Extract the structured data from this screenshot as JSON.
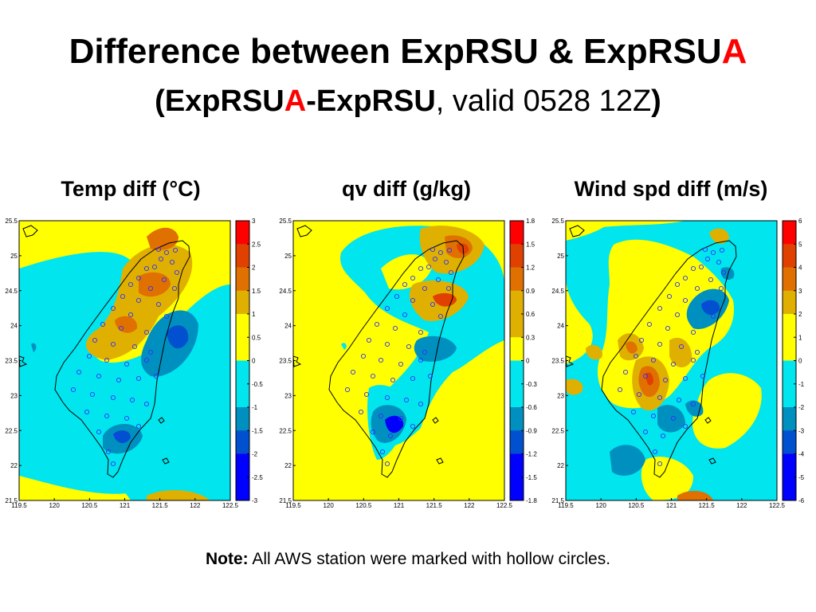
{
  "slide": {
    "title_line1_a": "Difference between ExpRSU & ExpRSU",
    "title_line1_b": "A",
    "title_line2_open": "(",
    "title_line2_a": "ExpRSU",
    "title_line2_b": "A",
    "title_line2_c": "-ExpRSU",
    "title_line2_d": ", valid 0528 12Z",
    "title_line2_close": ")",
    "note_label": "Note:",
    "note_text": " All AWS station were marked with hollow circles."
  },
  "colors": {
    "yellow": "#ffff00",
    "cyan": "#00e5ee",
    "teal": "#0090c0",
    "blue_mid": "#0050d0",
    "blue": "#0000ff",
    "gold": "#e0b000",
    "orange": "#e07000",
    "orange_dark": "#e04000",
    "red": "#ff0000",
    "station": "#3030ff"
  },
  "chart_data": [
    {
      "type": "heatmap",
      "title": "Temp diff (°C)",
      "x_ticks": [
        "119.5",
        "120",
        "120.5",
        "121",
        "121.5",
        "122",
        "122.5"
      ],
      "y_ticks": [
        "25.5",
        "25",
        "24.5",
        "24",
        "23.5",
        "23",
        "22.5",
        "22",
        "21.5"
      ],
      "xlim": [
        119.5,
        122.5
      ],
      "ylim": [
        21.5,
        25.5
      ],
      "colorbar_ticks": [
        "3",
        "2.5",
        "2",
        "1.5",
        "1",
        "0.5",
        "0",
        "-0.5",
        "-1",
        "-1.5",
        "-2",
        "-2.5",
        "-3"
      ],
      "colorbar_range": [
        -3,
        3
      ]
    },
    {
      "type": "heatmap",
      "title": "qv diff (g/kg)",
      "x_ticks": [
        "119.5",
        "120",
        "120.5",
        "121",
        "121.5",
        "122",
        "122.5"
      ],
      "y_ticks": [
        "25.5",
        "25",
        "24.5",
        "24",
        "23.5",
        "23",
        "22.5",
        "22",
        "21.5"
      ],
      "xlim": [
        119.5,
        122.5
      ],
      "ylim": [
        21.5,
        25.5
      ],
      "colorbar_ticks": [
        "1.8",
        "1.5",
        "1.2",
        "0.9",
        "0.6",
        "0.3",
        "0",
        "-0.3",
        "-0.6",
        "-0.9",
        "-1.2",
        "-1.5",
        "-1.8"
      ],
      "colorbar_range": [
        -1.8,
        1.8
      ]
    },
    {
      "type": "heatmap",
      "title": "Wind spd diff (m/s)",
      "x_ticks": [
        "119.5",
        "120",
        "120.5",
        "121",
        "121.5",
        "122",
        "122.5"
      ],
      "y_ticks": [
        "25.5",
        "25",
        "24.5",
        "24",
        "23.5",
        "23",
        "22.5",
        "22",
        "21.5"
      ],
      "xlim": [
        119.5,
        122.5
      ],
      "ylim": [
        21.5,
        25.5
      ],
      "colorbar_ticks": [
        "6",
        "5",
        "4",
        "3",
        "2",
        "1",
        "0",
        "-1",
        "-2",
        "-3",
        "-4",
        "-5",
        "-6"
      ],
      "colorbar_range": [
        -6,
        6
      ]
    }
  ]
}
